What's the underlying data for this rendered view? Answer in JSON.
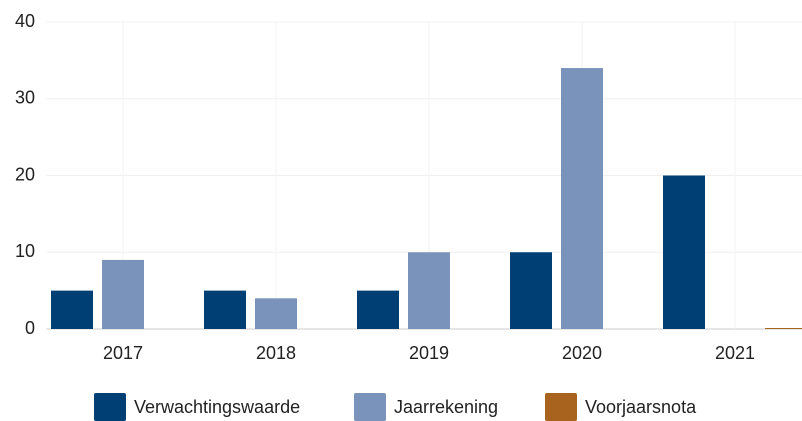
{
  "chart_data": {
    "type": "bar",
    "categories": [
      "2017",
      "2018",
      "2019",
      "2020",
      "2021"
    ],
    "series": [
      {
        "name": "Verwachtingswaarde",
        "color": "#003f73",
        "values": [
          5,
          5,
          5,
          10,
          20
        ]
      },
      {
        "name": "Jaarrekening",
        "color": "#7a93bb",
        "values": [
          9,
          4,
          10,
          34,
          null
        ]
      },
      {
        "name": "Voorjaarsnota",
        "color": "#a8641f",
        "values": [
          null,
          null,
          null,
          null,
          0
        ]
      }
    ],
    "ylim": [
      0,
      40
    ],
    "yticks": [
      0,
      10,
      20,
      30,
      40
    ],
    "grid": true,
    "legend": "bottom"
  }
}
